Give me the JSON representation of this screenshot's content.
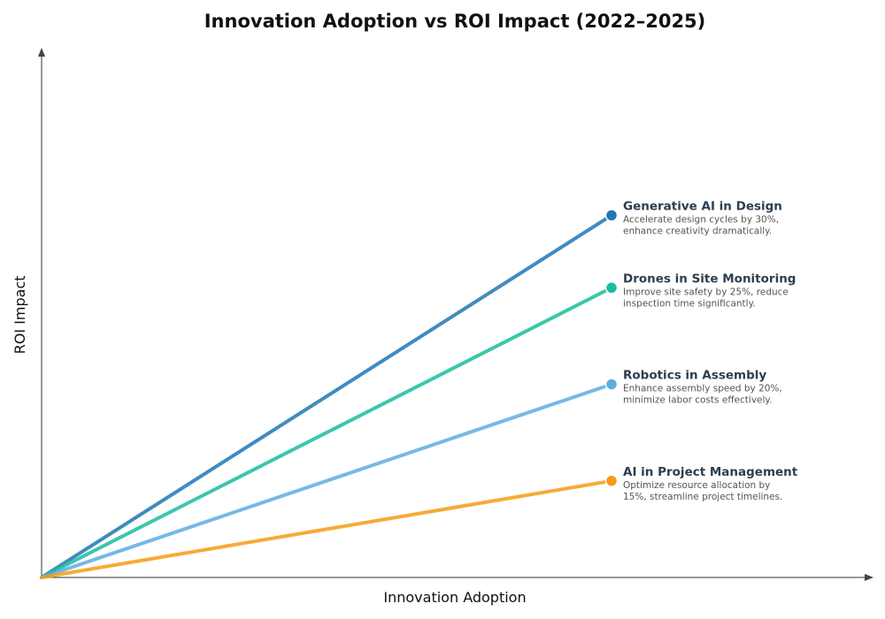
{
  "chart_data": {
    "type": "line",
    "title": "Innovation Adoption vs ROI Impact (2022–2025)",
    "xlabel": "Innovation Adoption",
    "ylabel": "ROI Impact",
    "grid": false,
    "xlim": [
      0,
      10
    ],
    "ylim": [
      0,
      10
    ],
    "series": [
      {
        "name": "Generative AI in Design",
        "desc_lines": [
          "Accelerate design cycles by 30%,",
          "enhance creativity dramatically."
        ],
        "color": "#1f77b4",
        "points": [
          [
            0,
            0
          ],
          [
            7,
            7.5
          ]
        ]
      },
      {
        "name": "Drones in Site Monitoring",
        "desc_lines": [
          "Improve site safety by 25%, reduce",
          "inspection time significantly."
        ],
        "color": "#1abc9c",
        "points": [
          [
            0,
            0
          ],
          [
            7,
            6
          ]
        ]
      },
      {
        "name": "Robotics in Assembly",
        "desc_lines": [
          "Enhance assembly speed by 20%,",
          "minimize labor costs effectively."
        ],
        "color": "#5dade2",
        "points": [
          [
            0,
            0
          ],
          [
            7,
            4
          ]
        ]
      },
      {
        "name": "AI in Project Management",
        "desc_lines": [
          "Optimize resource allocation by",
          "15%, streamline project timelines."
        ],
        "color": "#f39c12",
        "points": [
          [
            0,
            0
          ],
          [
            7,
            2
          ]
        ]
      }
    ]
  }
}
